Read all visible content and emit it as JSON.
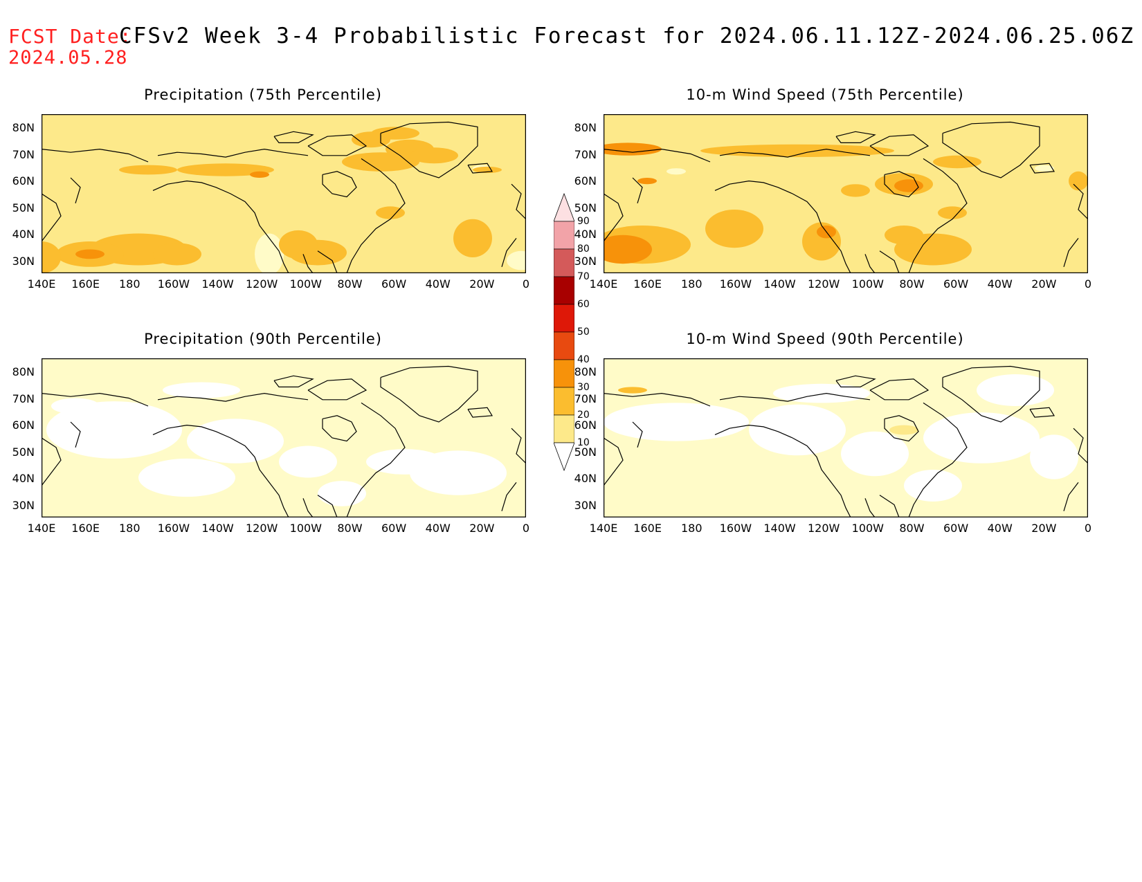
{
  "header": {
    "fcst_label": "FCST Date:",
    "fcst_date": "2024.05.28",
    "title": "CFSv2 Week 3-4 Probabilistic Forecast for 2024.06.11.12Z-2024.06.25.06Z"
  },
  "axes": {
    "lat_labels": [
      "80N",
      "70N",
      "60N",
      "50N",
      "40N",
      "30N"
    ],
    "lon_labels": [
      "140E",
      "160E",
      "180",
      "160W",
      "140W",
      "120W",
      "100W",
      "80W",
      "60W",
      "40W",
      "20W",
      "0"
    ]
  },
  "panels": [
    {
      "title": "Precipitation (75th Percentile)",
      "intensity": "high"
    },
    {
      "title": "10-m Wind Speed (75th Percentile)",
      "intensity": "high"
    },
    {
      "title": "Precipitation (90th Percentile)",
      "intensity": "low"
    },
    {
      "title": "10-m Wind Speed (90th Percentile)",
      "intensity": "low"
    }
  ],
  "colorbar": {
    "levels": [
      "10",
      "20",
      "30",
      "40",
      "50",
      "60",
      "70",
      "80",
      "90"
    ],
    "colors": [
      "#fffbc8",
      "#fde98a",
      "#fbbd2f",
      "#f7920a",
      "#e84a10",
      "#de1808",
      "#a80000",
      "#d45a5a",
      "#f2a3a8"
    ]
  }
}
